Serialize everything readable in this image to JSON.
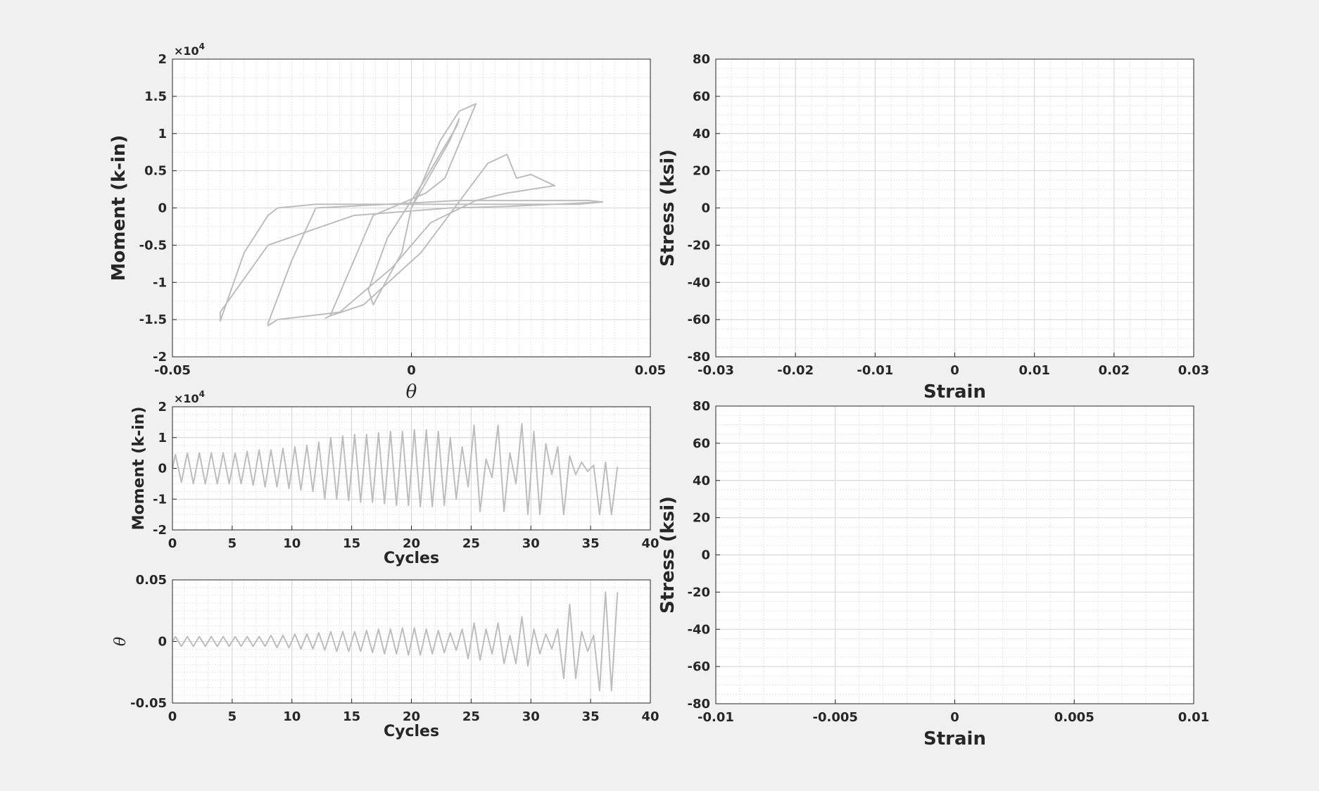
{
  "chart_data": [
    {
      "id": "hysteresis",
      "type": "line",
      "xlabel": "θ",
      "ylabel": "Moment (k-in)",
      "exponent": "×10",
      "exponent_power": "4",
      "xlim": [
        -0.05,
        0.05
      ],
      "ylim": [
        -2,
        2
      ],
      "xticks": [
        "-0.05",
        "0",
        "0.05"
      ],
      "yticks": [
        "-2",
        "-1.5",
        "-1",
        "-0.5",
        "0",
        "0.5",
        "1",
        "1.5",
        "2"
      ],
      "grid": true,
      "series": [
        {
          "color": "#bdbdbd",
          "x": [
            0,
            0.008,
            0.01,
            0.0095,
            0.003,
            -0.005,
            -0.009,
            -0.008,
            -0.002,
            0,
            0.006,
            0.01,
            0.0135,
            0.0135,
            0.007,
            0.003,
            -0.008,
            -0.017,
            -0.018,
            -0.017,
            -0.01,
            0.002,
            0.016,
            0.02,
            0.022,
            0.025,
            0.03,
            0.03,
            0.02,
            0.0135,
            0.004,
            -0.004,
            -0.015,
            -0.028,
            -0.03,
            -0.03,
            -0.025,
            -0.02,
            -0.005,
            0.01,
            0.02,
            0.03,
            0.035,
            0.037,
            0.04,
            0.03,
            0.02,
            0.008,
            -0.012,
            -0.03,
            -0.04,
            -0.04,
            -0.035,
            -0.03,
            -0.028,
            -0.02,
            -0.01,
            0.01,
            0.025,
            0.035,
            0.04
          ],
          "y": [
            0,
            0.9,
            1.2,
            1.1,
            0.4,
            -0.4,
            -1.1,
            -1.3,
            -0.6,
            0,
            0.9,
            1.3,
            1.4,
            1.4,
            0.4,
            0.2,
            -0.1,
            -1.45,
            -1.48,
            -1.45,
            -1.3,
            -0.6,
            0.6,
            0.72,
            0.4,
            0.45,
            0.3,
            0.3,
            0.2,
            0.1,
            -0.2,
            -0.8,
            -1.4,
            -1.5,
            -1.58,
            -1.55,
            -0.7,
            0,
            0.05,
            0.1,
            0.1,
            0.1,
            0.1,
            0.1,
            0.08,
            0.05,
            0.02,
            0,
            -0.1,
            -0.5,
            -1.4,
            -1.52,
            -0.6,
            -0.1,
            0,
            0.05,
            0.05,
            0.05,
            0.05,
            0.05,
            0.08
          ]
        }
      ]
    },
    {
      "id": "stress-strain-top",
      "type": "line",
      "xlabel": "Strain",
      "ylabel": "Stress (ksi)",
      "xlim": [
        -0.03,
        0.03
      ],
      "ylim": [
        -80,
        80
      ],
      "xticks": [
        "-0.03",
        "-0.02",
        "-0.01",
        "0",
        "0.01",
        "0.02",
        "0.03"
      ],
      "yticks": [
        "-80",
        "-60",
        "-40",
        "-20",
        "0",
        "20",
        "40",
        "60",
        "80"
      ],
      "grid": true,
      "series": []
    },
    {
      "id": "moment-cycles",
      "type": "line",
      "xlabel": "Cycles",
      "ylabel": "Moment (k-in)",
      "exponent": "×10",
      "exponent_power": "4",
      "xlim": [
        0,
        40
      ],
      "ylim": [
        -2,
        2
      ],
      "xticks": [
        "0",
        "5",
        "10",
        "15",
        "20",
        "25",
        "30",
        "35",
        "40"
      ],
      "yticks": [
        "-2",
        "-1",
        "0",
        "1",
        "2"
      ],
      "grid": true,
      "series": [
        {
          "color": "#bdbdbd",
          "cycle_start": 0,
          "cycle_step": 0.5,
          "amplitudes": [
            0.45,
            -0.45,
            0.5,
            -0.5,
            0.5,
            -0.5,
            0.5,
            -0.5,
            0.5,
            -0.5,
            0.5,
            -0.5,
            0.55,
            -0.55,
            0.6,
            -0.6,
            0.6,
            -0.6,
            0.65,
            -0.65,
            0.7,
            -0.7,
            0.75,
            -0.75,
            0.85,
            -1.0,
            1.0,
            -1.0,
            1.05,
            -1.05,
            1.1,
            -1.1,
            1.1,
            -1.1,
            1.15,
            -1.15,
            1.2,
            -1.2,
            1.2,
            -1.2,
            1.25,
            -1.25,
            1.25,
            -1.25,
            1.2,
            -1.2,
            1.0,
            -1.0,
            0.7,
            -0.6,
            1.4,
            -1.4,
            0.3,
            -0.3,
            1.4,
            -1.4,
            0.5,
            -0.5,
            1.45,
            -1.5,
            1.2,
            -1.5,
            0.8,
            -0.2,
            0.7,
            -1.5,
            0.4,
            -0.2,
            0.2,
            -0.1,
            0.1,
            -1.5,
            0.2,
            -1.5,
            0.05
          ]
        }
      ]
    },
    {
      "id": "theta-cycles",
      "type": "line",
      "xlabel": "Cycles",
      "ylabel": "θ",
      "xlim": [
        0,
        40
      ],
      "ylim": [
        -0.05,
        0.05
      ],
      "xticks": [
        "0",
        "5",
        "10",
        "15",
        "20",
        "25",
        "30",
        "35",
        "40"
      ],
      "yticks": [
        "-0.05",
        "0",
        "0.05"
      ],
      "grid": true,
      "series": [
        {
          "color": "#bdbdbd",
          "cycle_start": 0,
          "cycle_step": 0.5,
          "amplitudes": [
            0.004,
            -0.004,
            0.004,
            -0.004,
            0.004,
            -0.004,
            0.004,
            -0.004,
            0.004,
            -0.004,
            0.004,
            -0.004,
            0.004,
            -0.004,
            0.004,
            -0.004,
            0.005,
            -0.005,
            0.005,
            -0.005,
            0.006,
            -0.006,
            0.006,
            -0.006,
            0.007,
            -0.007,
            0.008,
            -0.008,
            0.008,
            -0.008,
            0.008,
            -0.008,
            0.009,
            -0.009,
            0.01,
            -0.01,
            0.01,
            -0.01,
            0.011,
            -0.011,
            0.011,
            -0.011,
            0.01,
            -0.01,
            0.009,
            -0.009,
            0.007,
            -0.007,
            0.01,
            -0.014,
            0.015,
            -0.015,
            0.01,
            -0.01,
            0.015,
            -0.018,
            0.005,
            -0.018,
            0.02,
            -0.02,
            0.01,
            -0.01,
            0.006,
            -0.006,
            0.01,
            -0.03,
            0.03,
            -0.03,
            0.008,
            -0.008,
            0.005,
            -0.04,
            0.04,
            -0.04,
            0.04
          ]
        }
      ]
    },
    {
      "id": "stress-strain-bottom",
      "type": "line",
      "xlabel": "Strain",
      "ylabel": "Stress (ksi)",
      "xlim": [
        -0.01,
        0.01
      ],
      "ylim": [
        -80,
        80
      ],
      "xticks": [
        "-0.01",
        "-0.005",
        "0",
        "0.005",
        "0.01"
      ],
      "yticks": [
        "-80",
        "-60",
        "-40",
        "-20",
        "0",
        "20",
        "40",
        "60",
        "80"
      ],
      "grid": true,
      "series": []
    }
  ]
}
